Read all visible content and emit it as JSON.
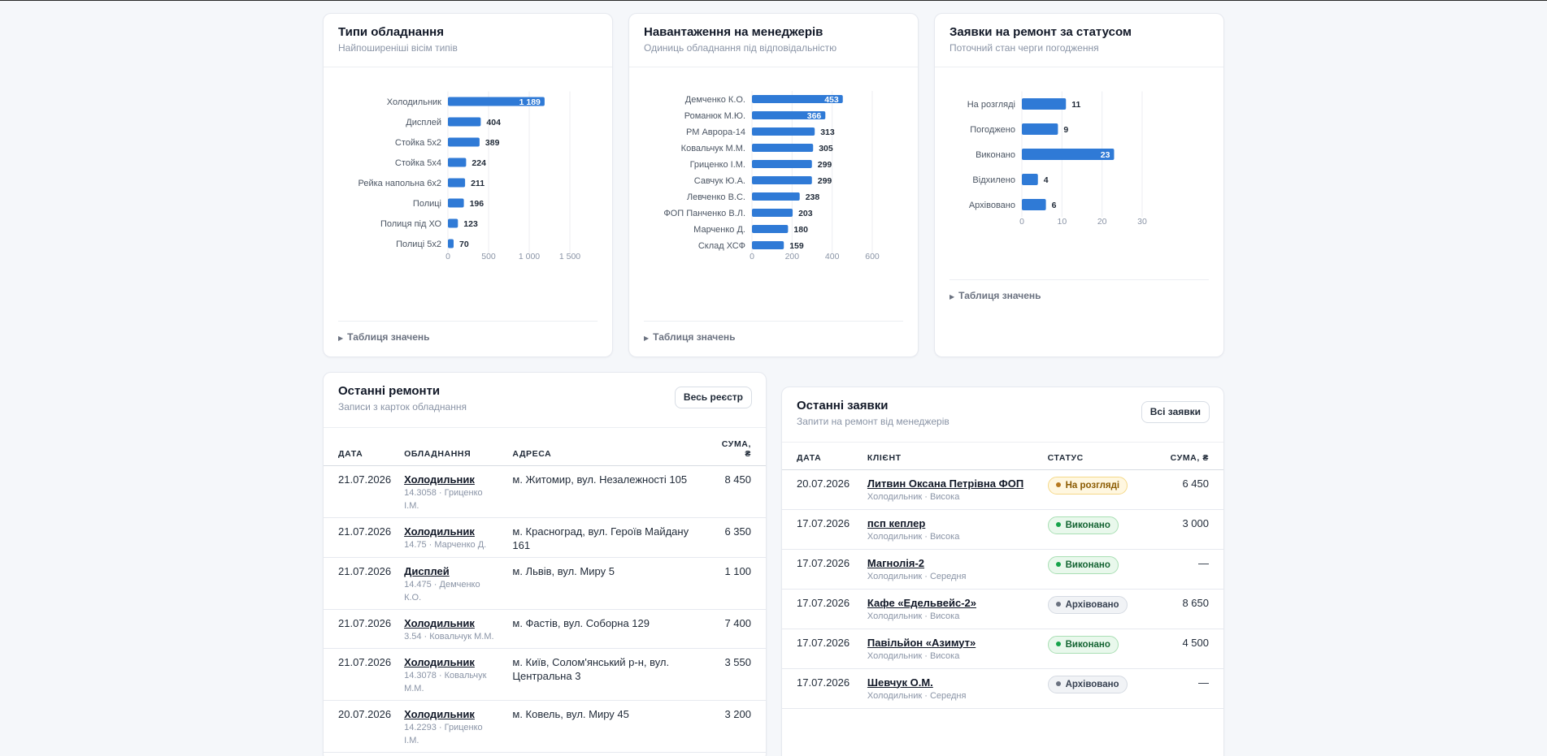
{
  "accent": "#2f7ad6",
  "chart_data": [
    {
      "type": "bar",
      "title": "Типи обладнання",
      "subtitle": "Найпоширеніші вісім типів",
      "categories": [
        "Холодильник",
        "Дисплей",
        "Стойка 5х2",
        "Стойка 5х4",
        "Рейка напольна 6х2",
        "Полиці",
        "Полиця під ХО",
        "Полиці 5х2"
      ],
      "values": [
        1189,
        404,
        389,
        224,
        211,
        196,
        123,
        70
      ],
      "value_labels": [
        "1 189",
        "404",
        "389",
        "224",
        "211",
        "196",
        "123",
        "70"
      ],
      "xticks": [
        "0",
        "500",
        "1 000",
        "1 500"
      ],
      "xtick_values": [
        0,
        500,
        1000,
        1500
      ],
      "xlim": [
        0,
        1500
      ],
      "orientation": "horizontal",
      "grid": true,
      "details_label": "Таблиця значень"
    },
    {
      "type": "bar",
      "title": "Навантаження на менеджерів",
      "subtitle": "Одиниць обладнання під відповідальністю",
      "categories": [
        "Демченко К.О.",
        "Романюк М.Ю.",
        "РМ Аврора-14",
        "Ковальчук М.М.",
        "Гриценко І.М.",
        "Савчук Ю.А.",
        "Левченко В.С.",
        "ФОП Панченко В.Л.",
        "Марченко Д.",
        "Склад ХСФ"
      ],
      "values": [
        453,
        366,
        313,
        305,
        299,
        299,
        238,
        203,
        180,
        159
      ],
      "value_labels": [
        "453",
        "366",
        "313",
        "305",
        "299",
        "299",
        "238",
        "203",
        "180",
        "159"
      ],
      "xticks": [
        "0",
        "200",
        "400",
        "600"
      ],
      "xtick_values": [
        0,
        200,
        400,
        600
      ],
      "xlim": [
        0,
        600
      ],
      "orientation": "horizontal",
      "grid": true,
      "details_label": "Таблиця значень"
    },
    {
      "type": "bar",
      "title": "Заявки на ремонт за статусом",
      "subtitle": "Поточний стан черги погодження",
      "categories": [
        "На розгляді",
        "Погоджено",
        "Виконано",
        "Відхилено",
        "Архівовано"
      ],
      "values": [
        11,
        9,
        23,
        4,
        6
      ],
      "value_labels": [
        "11",
        "9",
        "23",
        "4",
        "6"
      ],
      "xticks": [
        "0",
        "10",
        "20",
        "30"
      ],
      "xtick_values": [
        0,
        10,
        20,
        30
      ],
      "xlim": [
        0,
        30
      ],
      "orientation": "horizontal",
      "grid": true,
      "details_label": "Таблиця значень"
    }
  ],
  "repairs": {
    "title": "Останні ремонти",
    "subtitle": "Записи з карток обладнання",
    "button": "Весь реєстр",
    "headers": {
      "date": "Дата",
      "equipment": "Обладнання",
      "address": "Адреса",
      "sum_line1": "Сума,",
      "sum_line2": "₴"
    },
    "rows": [
      {
        "date": "21.07.2026",
        "equipment": "Холодильник",
        "meta": "14.3058 · Гриценко І.М.",
        "address": "м. Житомир, вул. Незалежності 105",
        "sum": "8 450"
      },
      {
        "date": "21.07.2026",
        "equipment": "Холодильник",
        "meta": "14.75 · Марченко Д.",
        "address": "м. Красноград, вул. Героїв Майдану 161",
        "sum": "6 350"
      },
      {
        "date": "21.07.2026",
        "equipment": "Дисплей",
        "meta": "14.475 · Демченко К.О.",
        "address": "м. Львів, вул. Миру 5",
        "sum": "1 100"
      },
      {
        "date": "21.07.2026",
        "equipment": "Холодильник",
        "meta": "3.54 · Ковальчук М.М.",
        "address": "м. Фастів, вул. Соборна 129",
        "sum": "7 400"
      },
      {
        "date": "21.07.2026",
        "equipment": "Холодильник",
        "meta": "14.3078 · Ковальчук М.М.",
        "address": "м. Київ, Солом'янський р-н, вул. Центральна 3",
        "sum": "3 550"
      },
      {
        "date": "20.07.2026",
        "equipment": "Холодильник",
        "meta": "14.2293 · Гриценко І.М.",
        "address": "м. Ковель, вул. Миру 45",
        "sum": "3 200"
      }
    ]
  },
  "requests": {
    "title": "Останні заявки",
    "subtitle": "Запити на ремонт від менеджерів",
    "button": "Всі заявки",
    "headers": {
      "date": "Дата",
      "client": "Клієнт",
      "status": "Статус",
      "sum": "Сума, ₴"
    },
    "status_colors": {
      "pending": {
        "bg": "#fff7e0",
        "border": "#f5d98a",
        "text": "#8a5a00",
        "dot": "#b7791f"
      },
      "done": {
        "bg": "#e9f8ec",
        "border": "#a9dfb4",
        "text": "#166534",
        "dot": "#16a34a"
      },
      "archived": {
        "bg": "#f1f3f6",
        "border": "#d5dae2",
        "text": "#374151",
        "dot": "#6b7280"
      }
    },
    "rows": [
      {
        "date": "20.07.2026",
        "client": "Литвин Оксана Петрівна ФОП",
        "meta": "Холодильник · Висока",
        "status": "На розгляді",
        "status_kind": "pending",
        "sum": "6 450"
      },
      {
        "date": "17.07.2026",
        "client": "псп кеплер",
        "meta": "Холодильник · Висока",
        "status": "Виконано",
        "status_kind": "done",
        "sum": "3 000"
      },
      {
        "date": "17.07.2026",
        "client": "Магнолія-2",
        "meta": "Холодильник · Середня",
        "status": "Виконано",
        "status_kind": "done",
        "sum": "—"
      },
      {
        "date": "17.07.2026",
        "client": "Кафе «Едельвейс-2»",
        "meta": "Холодильник · Висока",
        "status": "Архівовано",
        "status_kind": "archived",
        "sum": "8 650"
      },
      {
        "date": "17.07.2026",
        "client": "Павільйон «Азимут»",
        "meta": "Холодильник · Висока",
        "status": "Виконано",
        "status_kind": "done",
        "sum": "4 500"
      },
      {
        "date": "17.07.2026",
        "client": "Шевчук О.М.",
        "meta": "Холодильник · Середня",
        "status": "Архівовано",
        "status_kind": "archived",
        "sum": "—"
      }
    ]
  }
}
